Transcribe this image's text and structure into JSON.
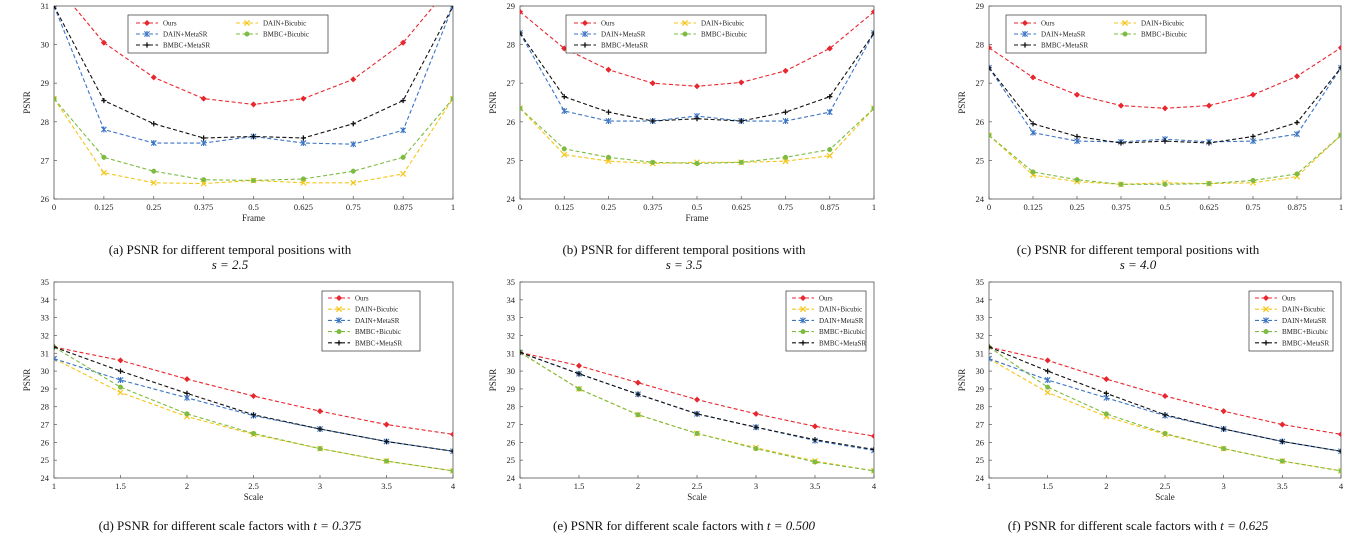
{
  "series_styles": [
    {
      "name": "Ours",
      "color": "#e8262d",
      "marker": "diamond"
    },
    {
      "name": "DAIN+Bicubic",
      "color": "#f5c518",
      "marker": "x"
    },
    {
      "name": "DAIN+MetaSR",
      "color": "#3b74c4",
      "marker": "star"
    },
    {
      "name": "BMBC+Bicubic",
      "color": "#7dbb42",
      "marker": "circle"
    },
    {
      "name": "BMBC+MetaSR",
      "color": "#111111",
      "marker": "plus"
    }
  ],
  "chart_data": [
    {
      "type": "line",
      "caption_prefix": "(a) PSNR for different temporal positions with",
      "caption_math": "s = 2.5",
      "xlabel": "Frame",
      "ylabel": "PSNR",
      "x": [
        0,
        0.125,
        0.25,
        0.375,
        0.5,
        0.625,
        0.75,
        0.875,
        1
      ],
      "xticks": [
        "0",
        "0.125",
        "0.25",
        "0.375",
        "0.5",
        "0.625",
        "0.75",
        "0.875",
        "1"
      ],
      "ylim": [
        26,
        31
      ],
      "yticks": [
        26,
        27,
        28,
        29,
        30,
        31
      ],
      "legend": "top-2col",
      "series": [
        {
          "name": "Ours",
          "values": [
            31.6,
            30.05,
            29.15,
            28.6,
            28.45,
            28.6,
            29.1,
            30.05,
            31.6
          ]
        },
        {
          "name": "DAIN+Bicubic",
          "values": [
            28.6,
            26.68,
            26.42,
            26.4,
            26.48,
            26.42,
            26.42,
            26.65,
            28.6
          ]
        },
        {
          "name": "DAIN+MetaSR",
          "values": [
            31.0,
            27.8,
            27.45,
            27.45,
            27.62,
            27.45,
            27.42,
            27.78,
            31.0
          ]
        },
        {
          "name": "BMBC+Bicubic",
          "values": [
            28.6,
            27.08,
            26.72,
            26.5,
            26.48,
            26.52,
            26.72,
            27.08,
            28.6
          ]
        },
        {
          "name": "BMBC+MetaSR",
          "values": [
            31.0,
            28.55,
            27.95,
            27.58,
            27.62,
            27.58,
            27.95,
            28.55,
            31.0
          ]
        }
      ]
    },
    {
      "type": "line",
      "caption_prefix": "(b) PSNR for different temporal positions with",
      "caption_math": "s = 3.5",
      "xlabel": "Frame",
      "ylabel": "PSNR",
      "x": [
        0,
        0.125,
        0.25,
        0.375,
        0.5,
        0.625,
        0.75,
        0.875,
        1
      ],
      "xticks": [
        "0",
        "0.125",
        "0.25",
        "0.375",
        "0.5",
        "0.625",
        "0.75",
        "0.875",
        "1"
      ],
      "ylim": [
        24,
        29
      ],
      "yticks": [
        24,
        25,
        26,
        27,
        28,
        29
      ],
      "legend": "top-2col",
      "series": [
        {
          "name": "Ours",
          "values": [
            28.85,
            27.9,
            27.35,
            27.0,
            26.92,
            27.02,
            27.32,
            27.9,
            28.85
          ]
        },
        {
          "name": "DAIN+Bicubic",
          "values": [
            26.35,
            25.15,
            24.98,
            24.92,
            24.95,
            24.95,
            24.98,
            25.12,
            26.35
          ]
        },
        {
          "name": "DAIN+MetaSR",
          "values": [
            28.3,
            26.28,
            26.02,
            26.02,
            26.15,
            26.02,
            26.02,
            26.25,
            28.3
          ]
        },
        {
          "name": "BMBC+Bicubic",
          "values": [
            26.35,
            25.3,
            25.08,
            24.95,
            24.92,
            24.95,
            25.08,
            25.28,
            26.35
          ]
        },
        {
          "name": "BMBC+MetaSR",
          "values": [
            28.3,
            26.65,
            26.25,
            26.02,
            26.08,
            26.02,
            26.25,
            26.65,
            28.3
          ]
        }
      ]
    },
    {
      "type": "line",
      "caption_prefix": "(c) PSNR for different temporal positions with",
      "caption_math": "s = 4.0",
      "xlabel": "",
      "ylabel": "PSNR",
      "x": [
        0,
        0.125,
        0.25,
        0.375,
        0.5,
        0.625,
        0.75,
        0.875,
        1
      ],
      "xticks": [
        "0",
        "0.125",
        "0.25",
        "0.375",
        "0.5",
        "0.625",
        "0.75",
        "0.875",
        "1"
      ],
      "ylim": [
        24,
        29
      ],
      "yticks": [
        24,
        25,
        26,
        27,
        28,
        29
      ],
      "legend": "top-2col-left",
      "series": [
        {
          "name": "Ours",
          "values": [
            27.92,
            27.15,
            26.7,
            26.42,
            26.35,
            26.42,
            26.7,
            27.18,
            27.92
          ]
        },
        {
          "name": "DAIN+Bicubic",
          "values": [
            25.65,
            24.62,
            24.45,
            24.38,
            24.42,
            24.4,
            24.42,
            24.58,
            25.65
          ]
        },
        {
          "name": "DAIN+MetaSR",
          "values": [
            27.4,
            25.72,
            25.5,
            25.48,
            25.55,
            25.48,
            25.5,
            25.68,
            27.4
          ]
        },
        {
          "name": "BMBC+Bicubic",
          "values": [
            25.65,
            24.7,
            24.5,
            24.38,
            24.38,
            24.4,
            24.48,
            24.65,
            25.65
          ]
        },
        {
          "name": "BMBC+MetaSR",
          "values": [
            27.4,
            25.95,
            25.62,
            25.45,
            25.5,
            25.45,
            25.62,
            25.98,
            27.4
          ]
        }
      ]
    },
    {
      "type": "line",
      "caption_prefix": "(d) PSNR for different scale factors with",
      "caption_math": "t = 0.375",
      "xlabel": "Scale",
      "ylabel": "PSNR",
      "x": [
        1,
        1.5,
        2,
        2.5,
        3,
        3.5,
        4
      ],
      "xticks": [
        "1",
        "1.5",
        "2",
        "2.5",
        "3",
        "3.5",
        "4"
      ],
      "ylim": [
        24,
        35
      ],
      "yticks": [
        24,
        25,
        26,
        27,
        28,
        29,
        30,
        31,
        32,
        33,
        34,
        35
      ],
      "legend": "top-right-col",
      "series": [
        {
          "name": "Ours",
          "values": [
            31.35,
            30.6,
            29.55,
            28.6,
            27.75,
            27.0,
            26.45
          ]
        },
        {
          "name": "DAIN+Bicubic",
          "values": [
            30.7,
            28.8,
            27.45,
            26.45,
            25.65,
            24.95,
            24.4
          ]
        },
        {
          "name": "DAIN+MetaSR",
          "values": [
            30.7,
            29.5,
            28.5,
            27.5,
            26.75,
            26.05,
            25.5
          ]
        },
        {
          "name": "BMBC+Bicubic",
          "values": [
            31.35,
            29.1,
            27.6,
            26.5,
            25.65,
            24.95,
            24.4
          ]
        },
        {
          "name": "BMBC+MetaSR",
          "values": [
            31.35,
            30.0,
            28.75,
            27.55,
            26.75,
            26.05,
            25.5
          ]
        }
      ]
    },
    {
      "type": "line",
      "caption_prefix": "(e) PSNR for different scale factors with",
      "caption_math": "t = 0.500",
      "xlabel": "Scale",
      "ylabel": "PSNR",
      "x": [
        1,
        1.5,
        2,
        2.5,
        3,
        3.5,
        4
      ],
      "xticks": [
        "1",
        "1.5",
        "2",
        "2.5",
        "3",
        "3.5",
        "4"
      ],
      "ylim": [
        24,
        35
      ],
      "yticks": [
        24,
        25,
        26,
        27,
        28,
        29,
        30,
        31,
        32,
        33,
        34,
        35
      ],
      "legend": "top-right-col",
      "series": [
        {
          "name": "Ours",
          "values": [
            31.05,
            30.3,
            29.35,
            28.4,
            27.6,
            26.9,
            26.35
          ]
        },
        {
          "name": "DAIN+Bicubic",
          "values": [
            31.05,
            29.0,
            27.55,
            26.5,
            25.7,
            24.95,
            24.4
          ]
        },
        {
          "name": "DAIN+MetaSR",
          "values": [
            31.05,
            29.85,
            28.7,
            27.6,
            26.85,
            26.1,
            25.55
          ]
        },
        {
          "name": "BMBC+Bicubic",
          "values": [
            31.05,
            29.0,
            27.55,
            26.5,
            25.65,
            24.9,
            24.4
          ]
        },
        {
          "name": "BMBC+MetaSR",
          "values": [
            31.05,
            29.85,
            28.7,
            27.6,
            26.85,
            26.15,
            25.6
          ]
        }
      ]
    },
    {
      "type": "line",
      "caption_prefix": "(f) PSNR for different scale factors with",
      "caption_math": "t = 0.625",
      "xlabel": "Scale",
      "ylabel": "PSNR",
      "x": [
        1,
        1.5,
        2,
        2.5,
        3,
        3.5,
        4
      ],
      "xticks": [
        "1",
        "1.5",
        "2",
        "2.5",
        "3",
        "3.5",
        "4"
      ],
      "ylim": [
        24,
        35
      ],
      "yticks": [
        24,
        25,
        26,
        27,
        28,
        29,
        30,
        31,
        32,
        33,
        34,
        35
      ],
      "legend": "top-right-col",
      "series": [
        {
          "name": "Ours",
          "values": [
            31.35,
            30.6,
            29.55,
            28.6,
            27.75,
            27.0,
            26.45
          ]
        },
        {
          "name": "DAIN+Bicubic",
          "values": [
            30.7,
            28.8,
            27.45,
            26.45,
            25.65,
            24.95,
            24.4
          ]
        },
        {
          "name": "DAIN+MetaSR",
          "values": [
            30.7,
            29.5,
            28.5,
            27.5,
            26.75,
            26.05,
            25.5
          ]
        },
        {
          "name": "BMBC+Bicubic",
          "values": [
            31.35,
            29.1,
            27.6,
            26.5,
            25.65,
            24.95,
            24.4
          ]
        },
        {
          "name": "BMBC+MetaSR",
          "values": [
            31.35,
            30.0,
            28.75,
            27.55,
            26.75,
            26.05,
            25.5
          ]
        }
      ]
    }
  ]
}
